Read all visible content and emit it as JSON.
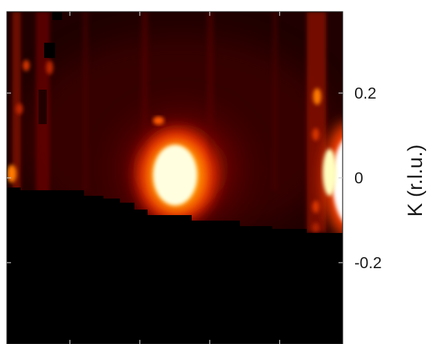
{
  "chart_data": {
    "type": "heatmap",
    "title": "",
    "xlabel": "",
    "ylabel": "K (r.l.u.)",
    "y_axis_side": "right",
    "ylim": [
      -0.4,
      0.4
    ],
    "y_ticks": [
      0.2,
      0,
      -0.2
    ],
    "y_tick_labels": [
      "0.2",
      "0",
      "-0.2"
    ],
    "x_ticks_visible": 4,
    "x_tick_labels": [],
    "colormap": "hot",
    "colormap_colors": [
      "#000000",
      "#3a0000",
      "#8a0a00",
      "#d83400",
      "#ff9a00",
      "#ffff9a",
      "#ffffff"
    ],
    "features": [
      {
        "name": "central-peak",
        "k_center": 0,
        "k_halfwidth": 0.06,
        "intensity": "saturated"
      },
      {
        "name": "right-edge-peak",
        "k_center": 0,
        "k_halfwidth": 0.08,
        "intensity": "saturated"
      },
      {
        "name": "right-streak",
        "k_center": 0,
        "k_halfwidth": 0.03,
        "intensity": "high"
      },
      {
        "name": "left-streak",
        "k_center": 0,
        "k_halfwidth": 0.02,
        "intensity": "medium"
      }
    ],
    "masked_region": "no data below the coverage boundary (lower part of map)",
    "grid": false,
    "legend": "none"
  }
}
